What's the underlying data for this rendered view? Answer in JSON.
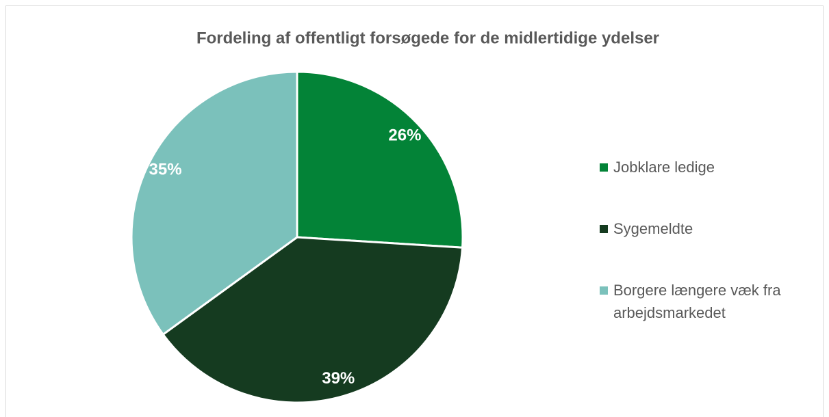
{
  "chart_data": {
    "type": "pie",
    "title": "Fordeling af offentligt forsøgede for de midlertidige ydelser",
    "categories": [
      "Jobklare ledige",
      "Sygemeldte",
      "Borgere længere væk fra arbejdsmarkedet"
    ],
    "values": [
      26,
      39,
      35
    ],
    "value_labels": [
      "26%",
      "39%",
      "35%"
    ],
    "colors": [
      "#038337",
      "#153b20",
      "#7bc1bb"
    ],
    "legend": "right"
  }
}
